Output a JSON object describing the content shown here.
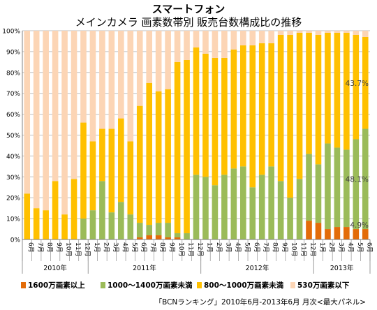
{
  "chart_data": {
    "type": "bar",
    "stacked": true,
    "title": "スマートフォン",
    "subtitle": "メインカメラ 画素数帯別 販売台数構成比の推移",
    "categories": [
      "6月",
      "7月",
      "8月",
      "9月",
      "10月",
      "11月",
      "12月",
      "1月",
      "2月",
      "3月",
      "4月",
      "5月",
      "6月",
      "7月",
      "8月",
      "9月",
      "10月",
      "11月",
      "12月",
      "1月",
      "2月",
      "3月",
      "4月",
      "5月",
      "6月",
      "7月",
      "8月",
      "9月",
      "10月",
      "11月",
      "12月",
      "1月",
      "2月",
      "3月",
      "4月",
      "5月",
      "6月"
    ],
    "year_groups": [
      {
        "label": "2010年",
        "start": 0,
        "count": 7
      },
      {
        "label": "2011年",
        "start": 7,
        "count": 12
      },
      {
        "label": "2012年",
        "start": 19,
        "count": 12
      },
      {
        "label": "2013年",
        "start": 31,
        "count": 6
      }
    ],
    "ylim": [
      0,
      100
    ],
    "yticks": [
      "0%",
      "10%",
      "20%",
      "30%",
      "40%",
      "50%",
      "60%",
      "70%",
      "80%",
      "90%",
      "100%"
    ],
    "grid": true,
    "legend_position": "bottom",
    "series": [
      {
        "name": "1600万画素以上",
        "color": "#e36c09",
        "values": [
          0,
          0,
          0,
          0,
          0,
          0,
          0,
          0,
          0,
          0,
          0,
          0,
          1,
          2,
          2,
          1,
          1,
          0,
          0,
          0,
          0,
          0,
          0,
          0,
          0,
          0,
          0,
          0,
          0,
          0,
          9,
          8,
          5,
          6,
          6,
          5,
          5
        ]
      },
      {
        "name": "1000～1400万画素未満",
        "color": "#9bbb59",
        "values": [
          0,
          0,
          0,
          0,
          0,
          0,
          10,
          14,
          28,
          13,
          18,
          12,
          7,
          5,
          6,
          7,
          2,
          3,
          31,
          30,
          26,
          31,
          34,
          35,
          25,
          31,
          35,
          28,
          20,
          29,
          32,
          28,
          41,
          38,
          37,
          43,
          48
        ]
      },
      {
        "name": "800～1000万画素未満",
        "color": "#ffc000",
        "values": [
          22,
          15,
          14,
          28,
          12,
          29,
          46,
          33,
          25,
          40,
          40,
          35,
          56,
          68,
          63,
          64,
          82,
          83,
          61,
          59,
          61,
          56,
          57,
          58,
          68,
          63,
          59,
          70,
          78,
          70,
          58,
          62,
          53,
          55,
          56,
          50,
          44
        ]
      },
      {
        "name": "530万画素以下",
        "color": "#fcd5b5",
        "values": [
          78,
          85,
          86,
          72,
          88,
          71,
          44,
          53,
          47,
          47,
          42,
          53,
          36,
          25,
          29,
          28,
          15,
          14,
          8,
          11,
          13,
          13,
          9,
          7,
          7,
          6,
          6,
          2,
          2,
          1,
          1,
          2,
          1,
          1,
          1,
          2,
          3
        ]
      }
    ],
    "data_labels": [
      {
        "text": "43.7%",
        "series": 2,
        "index": 36
      },
      {
        "text": "48.1%",
        "series": 1,
        "index": 36
      },
      {
        "text": "4.9%",
        "series": 0,
        "index": 36
      }
    ],
    "source": "「BCNランキング」2010年6月-2013年6月 月次<最大パネル>"
  }
}
